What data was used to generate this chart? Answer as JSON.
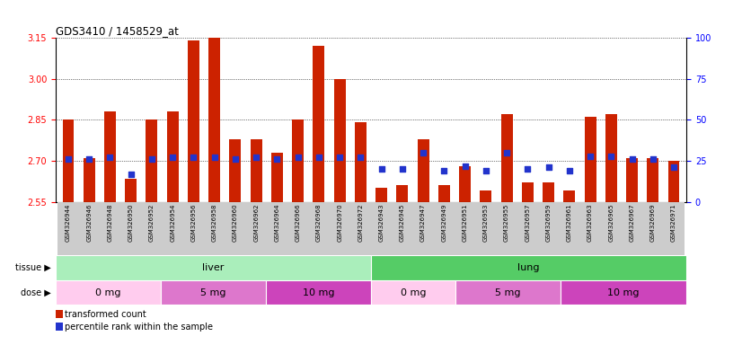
{
  "title": "GDS3410 / 1458529_at",
  "samples": [
    "GSM326944",
    "GSM326946",
    "GSM326948",
    "GSM326950",
    "GSM326952",
    "GSM326954",
    "GSM326956",
    "GSM326958",
    "GSM326960",
    "GSM326962",
    "GSM326964",
    "GSM326966",
    "GSM326968",
    "GSM326970",
    "GSM326972",
    "GSM326943",
    "GSM326945",
    "GSM326947",
    "GSM326949",
    "GSM326951",
    "GSM326953",
    "GSM326955",
    "GSM326957",
    "GSM326959",
    "GSM326961",
    "GSM326963",
    "GSM326965",
    "GSM326967",
    "GSM326969",
    "GSM326971"
  ],
  "transformed_count": [
    2.85,
    2.71,
    2.88,
    2.635,
    2.85,
    2.88,
    3.14,
    3.15,
    2.78,
    2.78,
    2.73,
    2.85,
    3.12,
    3.0,
    2.84,
    2.6,
    2.61,
    2.78,
    2.61,
    2.68,
    2.59,
    2.87,
    2.62,
    2.62,
    2.59,
    2.86,
    2.87,
    2.71,
    2.71,
    2.7
  ],
  "percentile_rank": [
    26,
    26,
    27,
    17,
    26,
    27,
    27,
    27,
    26,
    27,
    26,
    27,
    27,
    27,
    27,
    20,
    20,
    30,
    19,
    22,
    19,
    30,
    20,
    21,
    19,
    28,
    28,
    26,
    26,
    21
  ],
  "ylim_left": [
    2.55,
    3.15
  ],
  "ylim_right": [
    0,
    100
  ],
  "yticks_left": [
    2.55,
    2.7,
    2.85,
    3.0,
    3.15
  ],
  "yticks_right": [
    0,
    25,
    50,
    75,
    100
  ],
  "bar_color": "#cc2200",
  "dot_color": "#2233cc",
  "plot_bg_color": "#ffffff",
  "tick_bg_color": "#cccccc",
  "tissue_groups": [
    {
      "label": "liver",
      "start": 0,
      "end": 15,
      "color": "#aaeebb"
    },
    {
      "label": "lung",
      "start": 15,
      "end": 30,
      "color": "#55cc66"
    }
  ],
  "dose_groups": [
    {
      "label": "0 mg",
      "start": 0,
      "end": 5,
      "color": "#ffccee"
    },
    {
      "label": "5 mg",
      "start": 5,
      "end": 10,
      "color": "#dd77cc"
    },
    {
      "label": "10 mg",
      "start": 10,
      "end": 15,
      "color": "#cc44bb"
    },
    {
      "label": "0 mg",
      "start": 15,
      "end": 19,
      "color": "#ffccee"
    },
    {
      "label": "5 mg",
      "start": 19,
      "end": 24,
      "color": "#dd77cc"
    },
    {
      "label": "10 mg",
      "start": 24,
      "end": 30,
      "color": "#cc44bb"
    }
  ]
}
